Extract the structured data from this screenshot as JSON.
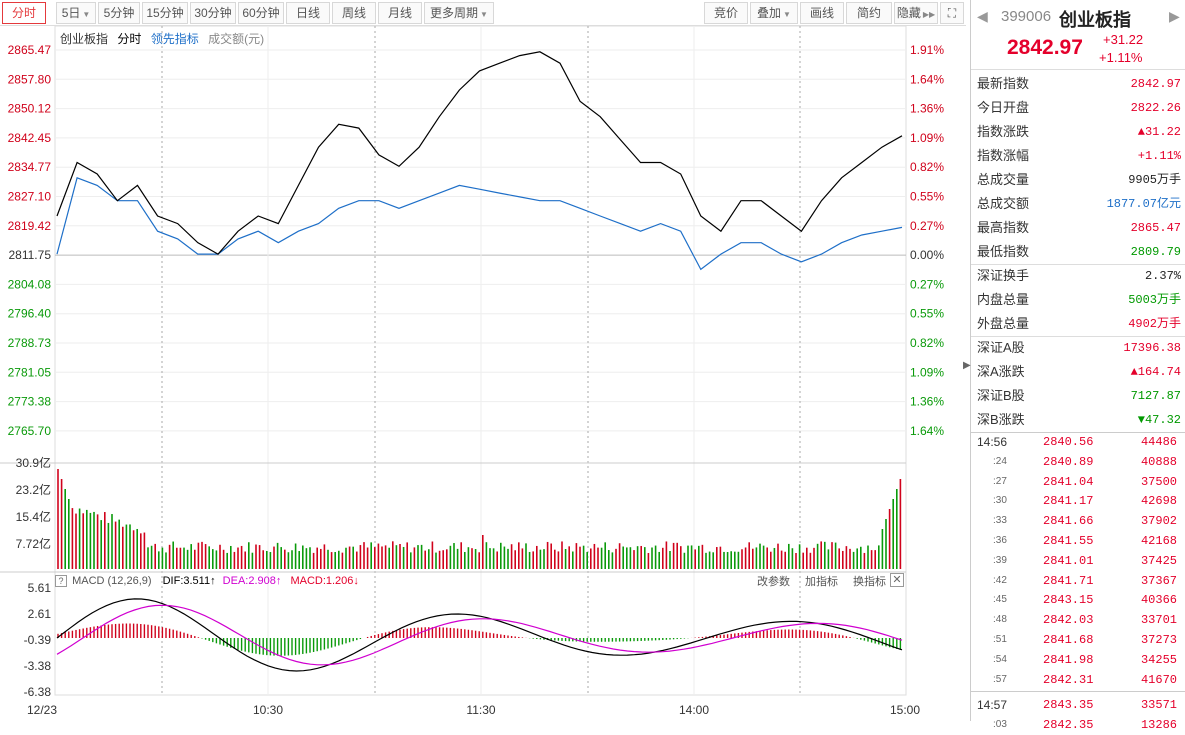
{
  "toolbar": {
    "tabs": [
      "分时",
      "5日",
      "5分钟",
      "15分钟",
      "30分钟",
      "60分钟",
      "日线",
      "周线",
      "月线",
      "更多周期"
    ],
    "right": [
      "竞价",
      "叠加",
      "画线",
      "简约",
      "隐藏"
    ]
  },
  "legend": {
    "name": "创业板指",
    "mode": "分时",
    "lead": "领先指标",
    "vol": "成交额(元)"
  },
  "yaxis_left": [
    "2865.47",
    "2857.80",
    "2850.12",
    "2842.45",
    "2834.77",
    "2827.10",
    "2819.42",
    "2811.75",
    "2804.08",
    "2796.40",
    "2788.73",
    "2781.05",
    "2773.38",
    "2765.70"
  ],
  "yaxis_right": [
    "1.91%",
    "1.64%",
    "1.36%",
    "1.09%",
    "0.82%",
    "0.55%",
    "0.27%",
    "0.00%",
    "0.27%",
    "0.55%",
    "0.82%",
    "1.09%",
    "1.36%",
    "1.64%"
  ],
  "vol_axis": [
    "30.9亿",
    "23.2亿",
    "15.4亿",
    "7.72亿"
  ],
  "macd_axis": [
    "5.61",
    "2.61",
    "-0.39",
    "-3.38",
    "-6.38"
  ],
  "macd": {
    "title": "MACD (12,26,9)",
    "dif": "DIF:3.511↑",
    "dea": "DEA:2.908↑",
    "macd": "MACD:1.206↓",
    "btn1": "改参数",
    "btn2": "加指标",
    "btn3": "换指标"
  },
  "xaxis": [
    "12/23",
    "10:30",
    "11:30",
    "14:00",
    "15:00"
  ],
  "header": {
    "code": "399006",
    "name": "创业板指",
    "price": "2842.97",
    "change": "+31.22",
    "pct": "+1.11%"
  },
  "stats": [
    {
      "k": "最新指数",
      "v": "2842.97",
      "c": "red"
    },
    {
      "k": "今日开盘",
      "v": "2822.26",
      "c": "red"
    },
    {
      "k": "指数涨跌",
      "v": "▲31.22",
      "c": "red"
    },
    {
      "k": "指数涨幅",
      "v": "+1.11%",
      "c": "red"
    },
    {
      "k": "总成交量",
      "v": "9905万手",
      "c": "dark"
    },
    {
      "k": "总成交额",
      "v": "1877.07亿元",
      "c": "blue"
    },
    {
      "k": "最高指数",
      "v": "2865.47",
      "c": "red"
    },
    {
      "k": "最低指数",
      "v": "2809.79",
      "c": "green"
    },
    {
      "k": "深证换手",
      "v": "2.37%",
      "c": "dark"
    },
    {
      "k": "内盘总量",
      "v": "5003万手",
      "c": "green"
    },
    {
      "k": "外盘总量",
      "v": "4902万手",
      "c": "red"
    },
    {
      "k": "深证A股",
      "v": "17396.38",
      "c": "red"
    },
    {
      "k": "深A涨跌",
      "v": "▲164.74",
      "c": "red"
    },
    {
      "k": "深证B股",
      "v": "7127.87",
      "c": "green"
    },
    {
      "k": "深B涨跌",
      "v": "▼47.32",
      "c": "green"
    }
  ],
  "ticks": [
    {
      "t": "14:56",
      "p": "2840.56",
      "v": "44486",
      "big": true
    },
    {
      "t": ":24",
      "p": "2840.89",
      "v": "40888"
    },
    {
      "t": ":27",
      "p": "2841.04",
      "v": "37500"
    },
    {
      "t": ":30",
      "p": "2841.17",
      "v": "42698"
    },
    {
      "t": ":33",
      "p": "2841.66",
      "v": "37902"
    },
    {
      "t": ":36",
      "p": "2841.55",
      "v": "42168"
    },
    {
      "t": ":39",
      "p": "2841.01",
      "v": "37425"
    },
    {
      "t": ":42",
      "p": "2841.71",
      "v": "37367"
    },
    {
      "t": ":45",
      "p": "2843.15",
      "v": "40366"
    },
    {
      "t": ":48",
      "p": "2842.03",
      "v": "33701"
    },
    {
      "t": ":51",
      "p": "2841.68",
      "v": "37273"
    },
    {
      "t": ":54",
      "p": "2841.98",
      "v": "34255"
    },
    {
      "t": ":57",
      "p": "2842.31",
      "v": "41670"
    },
    {
      "t": "14:57",
      "p": "2843.35",
      "v": "33571",
      "big": true
    },
    {
      "t": ":03",
      "p": "2842.35",
      "v": "13286"
    }
  ],
  "chart_data": {
    "type": "line",
    "title": "创业板指 分时",
    "ylim": [
      2765.7,
      2865.47
    ],
    "prev_close": 2811.75,
    "price_series": [
      2822,
      2836,
      2833,
      2826,
      2830,
      2822,
      2820,
      2815,
      2812,
      2818,
      2822,
      2820,
      2830,
      2840,
      2846,
      2845,
      2838,
      2835,
      2840,
      2848,
      2855,
      2860,
      2862,
      2864,
      2865,
      2862,
      2852,
      2848,
      2842,
      2836,
      2836,
      2833,
      2822,
      2818,
      2826,
      2826,
      2822,
      2818,
      2826,
      2832,
      2836,
      2840,
      2843
    ],
    "lead_series": [
      2812,
      2832,
      2830,
      2826,
      2826,
      2818,
      2816,
      2812,
      2812,
      2816,
      2818,
      2815,
      2818,
      2820,
      2824,
      2826,
      2826,
      2824,
      2826,
      2828,
      2830,
      2829,
      2828,
      2827,
      2826,
      2826,
      2824,
      2822,
      2820,
      2818,
      2820,
      2818,
      2808,
      2812,
      2815,
      2815,
      2812,
      2810,
      2812,
      2815,
      2817,
      2818,
      2819
    ]
  }
}
